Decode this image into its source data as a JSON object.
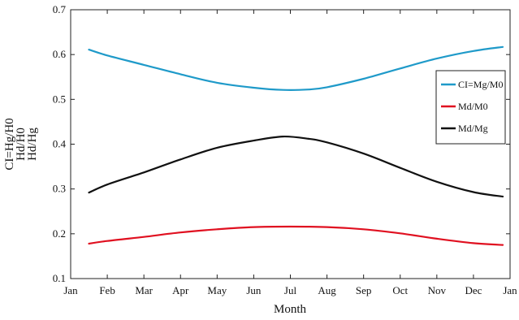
{
  "chart_data": {
    "type": "line",
    "title": "",
    "xlabel": "Month",
    "ylabel_lines": [
      "CI=Hg/H0",
      "Hd/H0",
      "Hd/Hg"
    ],
    "x_ticks": [
      "Jan",
      "Feb",
      "Mar",
      "Apr",
      "May",
      "Jun",
      "Jul",
      "Aug",
      "Sep",
      "Oct",
      "Nov",
      "Dec",
      "Jan"
    ],
    "x_range": [
      1,
      13
    ],
    "y_ticks": [
      "0.1",
      "0.2",
      "0.3",
      "0.4",
      "0.5",
      "0.6",
      "0.7"
    ],
    "ylim": [
      0.1,
      0.7
    ],
    "grid": false,
    "legend_position": "right",
    "series": [
      {
        "name": "CI=Mg/M0",
        "color": "#1f9ac9",
        "x": [
          1.5,
          2,
          3,
          4,
          5,
          6,
          6.8,
          7.5,
          8,
          9,
          10,
          11,
          12,
          12.8
        ],
        "values": [
          0.611,
          0.598,
          0.577,
          0.556,
          0.537,
          0.526,
          0.521,
          0.522,
          0.527,
          0.546,
          0.569,
          0.591,
          0.608,
          0.617
        ]
      },
      {
        "name": "Md/M0",
        "color": "#e01020",
        "x": [
          1.5,
          2,
          3,
          4,
          5,
          6,
          7,
          8,
          9,
          10,
          11,
          12,
          12.8
        ],
        "values": [
          0.178,
          0.184,
          0.193,
          0.203,
          0.21,
          0.215,
          0.216,
          0.215,
          0.21,
          0.201,
          0.189,
          0.179,
          0.175
        ]
      },
      {
        "name": "Md/Mg",
        "color": "#111111",
        "x": [
          1.5,
          2,
          3,
          4,
          5,
          6,
          6.8,
          7.5,
          8,
          9,
          10,
          11,
          12,
          12.8
        ],
        "values": [
          0.292,
          0.31,
          0.337,
          0.366,
          0.392,
          0.408,
          0.417,
          0.412,
          0.404,
          0.379,
          0.347,
          0.316,
          0.293,
          0.283
        ]
      }
    ]
  }
}
